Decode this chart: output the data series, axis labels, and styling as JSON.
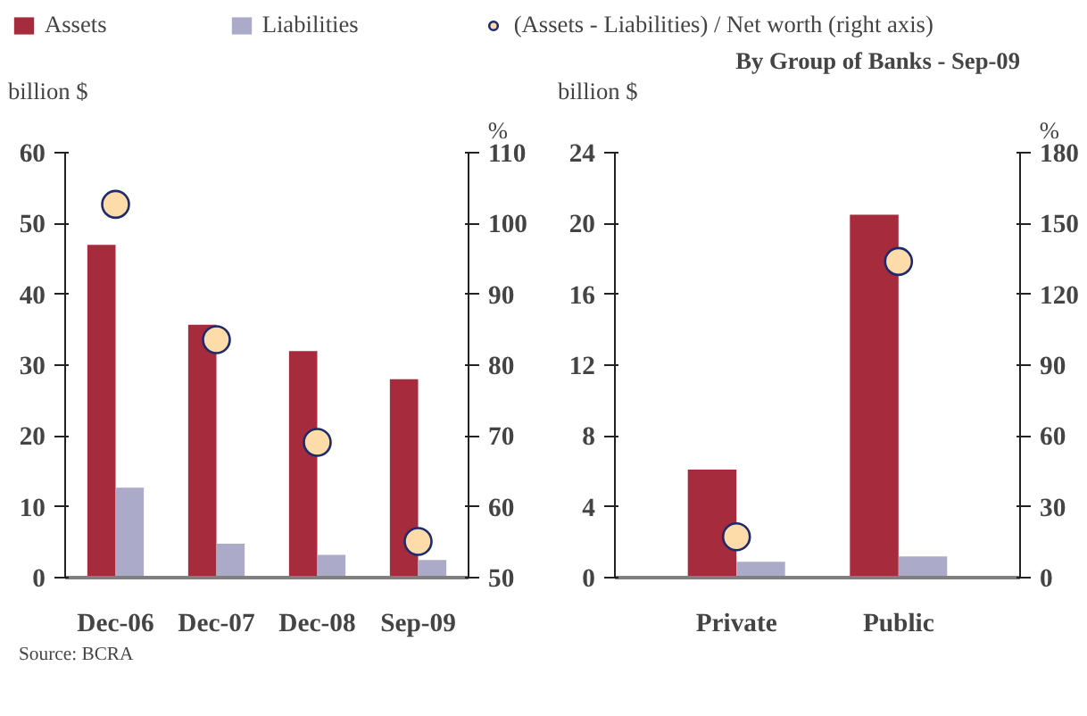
{
  "chart_data": [
    {
      "type": "bar",
      "categories": [
        "Dec-06",
        "Dec-07",
        "Dec-08",
        "Sep-09"
      ],
      "ylabel": "billion $",
      "y2label": "%",
      "legend": "top",
      "grid": false,
      "ylim": [
        0,
        60
      ],
      "yticks": [
        0,
        10,
        20,
        30,
        40,
        50,
        60
      ],
      "y2lim": [
        50,
        110
      ],
      "y2ticks": [
        50,
        60,
        70,
        80,
        90,
        100,
        110
      ],
      "series": [
        {
          "name": "Assets",
          "color": "#a62b3c",
          "values": [
            47.0,
            35.7,
            32.0,
            28.0
          ]
        },
        {
          "name": "Liabilities",
          "color": "#abaac8",
          "values": [
            12.7,
            4.8,
            3.2,
            2.5
          ]
        },
        {
          "name": "(Assets - Liabilities) / Net worth (right axis)",
          "type": "scatter",
          "axis": "y2",
          "marker": "circle",
          "color": "#fddcaa",
          "values": [
            102.7,
            83.6,
            69.1,
            55.1
          ]
        }
      ],
      "annotations": [
        "Source: BCRA"
      ]
    },
    {
      "type": "bar",
      "title": "By Group of Banks - Sep-09",
      "categories": [
        "Private",
        "Public"
      ],
      "ylabel": "billion $",
      "y2label": "%",
      "grid": false,
      "ylim": [
        0,
        24
      ],
      "yticks": [
        0,
        4,
        8,
        12,
        16,
        20,
        24
      ],
      "y2lim": [
        0,
        180
      ],
      "y2ticks": [
        0,
        30,
        60,
        90,
        120,
        150,
        180
      ],
      "series": [
        {
          "color": "#a62b3c",
          "values": [
            6.1,
            20.5
          ]
        },
        {
          "color": "#abaac8",
          "values": [
            0.9,
            1.2
          ]
        },
        {
          "type": "scatter",
          "axis": "y2",
          "marker": "circle",
          "color": "#fddcaa",
          "values": [
            17.3,
            133.9
          ]
        }
      ]
    }
  ]
}
